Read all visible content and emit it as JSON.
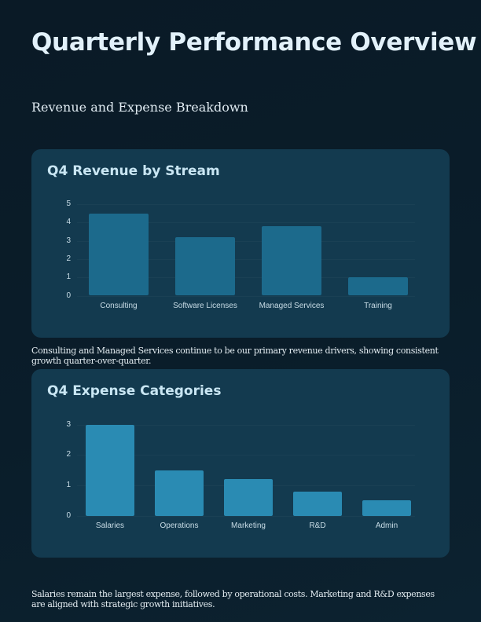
{
  "header": {
    "title": "Quarterly Performance Overview",
    "subtitle": "Revenue and Expense Breakdown"
  },
  "colors": {
    "background": "#0a1d2a",
    "card": "#133a4f",
    "revenue_bar": "#1c6a8c",
    "expense_bar": "#2a8bb3",
    "title_text": "#e2f1fa"
  },
  "chart_data": [
    {
      "type": "bar",
      "title": "Q4 Revenue by Stream",
      "categories": [
        "Consulting",
        "Software Licenses",
        "Managed Services",
        "Training"
      ],
      "values": [
        4.5,
        3.2,
        3.8,
        1.0
      ],
      "xlabel": "",
      "ylabel": "",
      "ylim": [
        0,
        5
      ],
      "yticks": [
        "0",
        "1",
        "2",
        "3",
        "4",
        "5"
      ],
      "grid": true,
      "legend": "none",
      "color": "#1c6a8c"
    },
    {
      "type": "bar",
      "title": "Q4 Expense Categories",
      "categories": [
        "Salaries",
        "Operations",
        "Marketing",
        "R&D",
        "Admin"
      ],
      "values": [
        3.0,
        1.5,
        1.2,
        0.8,
        0.5
      ],
      "xlabel": "",
      "ylabel": "",
      "ylim": [
        0,
        3
      ],
      "yticks": [
        "0",
        "1",
        "2",
        "3"
      ],
      "grid": true,
      "legend": "none",
      "color": "#2a8bb3"
    }
  ],
  "notes": {
    "revenue": "Consulting and Managed Services continue to be our primary revenue drivers, showing consistent growth quarter-over-quarter.",
    "expense": "Salaries remain the largest expense, followed by operational costs. Marketing and R&D expenses are aligned with strategic growth initiatives."
  }
}
